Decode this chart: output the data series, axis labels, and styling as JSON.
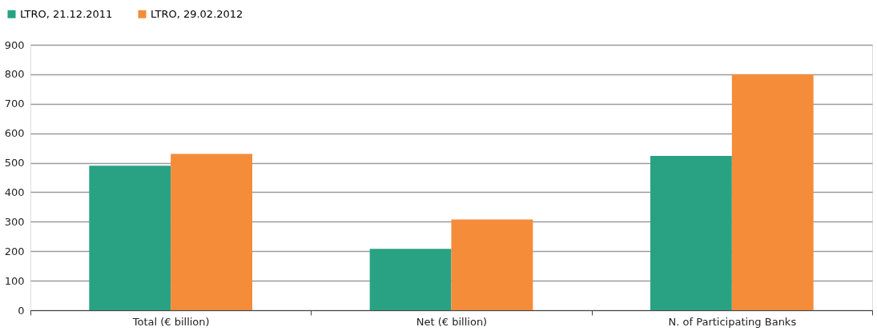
{
  "chart_data": {
    "type": "bar",
    "categories": [
      "Total (€ billion)",
      "Net (€ billion)",
      "N. of Participating Banks"
    ],
    "series": [
      {
        "name": "LTRO, 21.12.2011",
        "color": "#29a283",
        "values": [
          490,
          208,
          523
        ]
      },
      {
        "name": "LTRO, 29.02.2012",
        "color": "#f48c3a",
        "values": [
          530,
          308,
          800
        ]
      }
    ],
    "ylim": [
      0,
      900
    ],
    "yticks": [
      0,
      100,
      200,
      300,
      400,
      500,
      600,
      700,
      800,
      900
    ],
    "grid": "y",
    "legend": "top left"
  }
}
